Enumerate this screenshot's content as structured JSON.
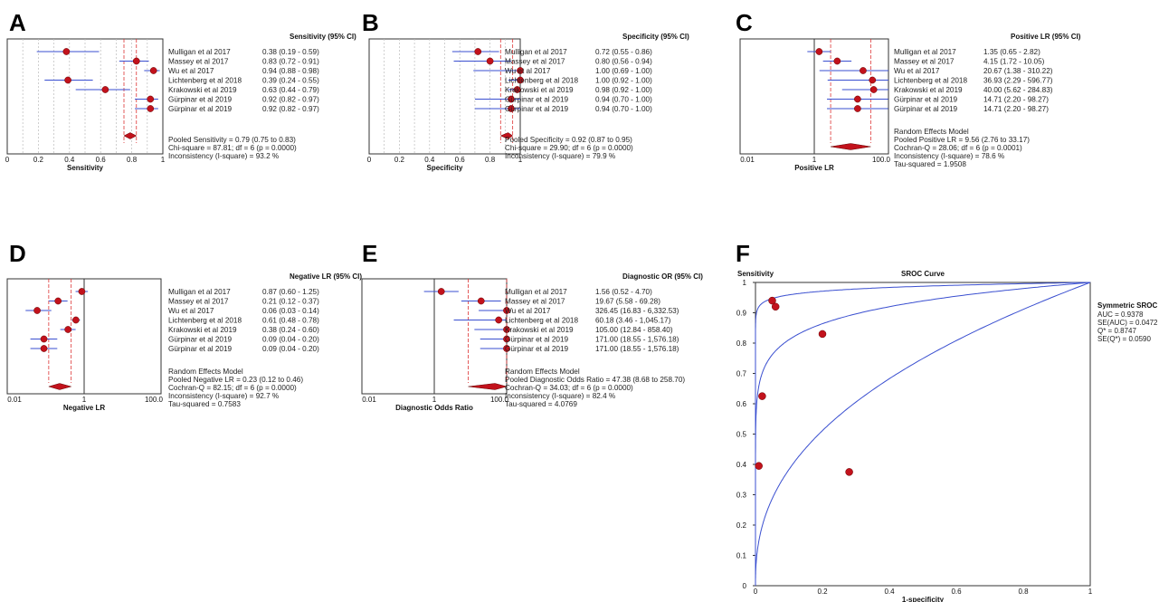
{
  "panels": [
    {
      "letter": "A",
      "header": "Sensitivity (95% CI)",
      "xlabel": "Sensitivity",
      "scale": "linear",
      "xlim": [
        0,
        1
      ],
      "ticks": [
        "0",
        "0.2",
        "0.4",
        "0.6",
        "0.8",
        "1"
      ],
      "refline": null,
      "pooled": {
        "est": 0.79,
        "lo": 0.75,
        "hi": 0.83
      },
      "rows": [
        {
          "study": "Mulligan et al 2017",
          "est": 0.38,
          "lo": 0.19,
          "hi": 0.59,
          "ci": "0.38     (0.19 - 0.59)"
        },
        {
          "study": "Massey et al 2017",
          "est": 0.83,
          "lo": 0.72,
          "hi": 0.91,
          "ci": "0.83     (0.72 - 0.91)"
        },
        {
          "study": "Wu et al 2017",
          "est": 0.94,
          "lo": 0.88,
          "hi": 0.98,
          "ci": "0.94     (0.88 - 0.98)"
        },
        {
          "study": "Lichtenberg et al 2018",
          "est": 0.39,
          "lo": 0.24,
          "hi": 0.55,
          "ci": "0.39     (0.24 - 0.55)"
        },
        {
          "study": "Krakowski et al 2019",
          "est": 0.63,
          "lo": 0.44,
          "hi": 0.79,
          "ci": "0.63     (0.44 - 0.79)"
        },
        {
          "study": "Gürpinar et al 2019",
          "est": 0.92,
          "lo": 0.82,
          "hi": 0.97,
          "ci": "0.92     (0.82 - 0.97)"
        },
        {
          "study": "Gürpinar et al 2019",
          "est": 0.92,
          "lo": 0.82,
          "hi": 0.97,
          "ci": "0.92     (0.82 - 0.97)"
        }
      ],
      "stats": [
        "Pooled Sensitivity = 0.79 (0.75 to 0.83)",
        "Chi-square = 87.81; df = 6 (p = 0.0000)",
        "Inconsistency (I-square) = 93.2 %"
      ]
    },
    {
      "letter": "B",
      "header": "Specificity (95% CI)",
      "xlabel": "Specificity",
      "scale": "linear",
      "xlim": [
        0,
        1
      ],
      "ticks": [
        "0",
        "0.2",
        "0.4",
        "0.6",
        "0.8",
        "1"
      ],
      "refline": null,
      "pooled": {
        "est": 0.92,
        "lo": 0.87,
        "hi": 0.95
      },
      "rows": [
        {
          "study": "Mulligan et al 2017",
          "est": 0.72,
          "lo": 0.55,
          "hi": 0.86,
          "ci": "0.72     (0.55 - 0.86)"
        },
        {
          "study": "Massey et al 2017",
          "est": 0.8,
          "lo": 0.56,
          "hi": 0.94,
          "ci": "0.80     (0.56 - 0.94)"
        },
        {
          "study": "Wu et al 2017",
          "est": 1.0,
          "lo": 0.69,
          "hi": 1.0,
          "ci": "1.00     (0.69 - 1.00)"
        },
        {
          "study": "Lichtenberg et al 2018",
          "est": 1.0,
          "lo": 0.92,
          "hi": 1.0,
          "ci": "1.00     (0.92 - 1.00)"
        },
        {
          "study": "Krakowski et al 2019",
          "est": 0.98,
          "lo": 0.92,
          "hi": 1.0,
          "ci": "0.98     (0.92 - 1.00)"
        },
        {
          "study": "Gürpinar et al 2019",
          "est": 0.94,
          "lo": 0.7,
          "hi": 1.0,
          "ci": "0.94     (0.70 - 1.00)"
        },
        {
          "study": "Gürpinar et al 2019",
          "est": 0.94,
          "lo": 0.7,
          "hi": 1.0,
          "ci": "0.94     (0.70 - 1.00)"
        }
      ],
      "stats": [
        "Pooled Specificity = 0.92 (0.87 to 0.95)",
        "Chi-square = 29.90; df = 6 (p = 0.0000)",
        "Inconsistency (I-square) = 79.9 %"
      ]
    },
    {
      "letter": "C",
      "header": "Positive LR (95% CI)",
      "xlabel": "Positive LR",
      "scale": "log",
      "xlim": [
        0.01,
        100
      ],
      "ticks": [
        "0.01",
        "1",
        "100.0"
      ],
      "refline": 1,
      "pooled": {
        "est": 9.56,
        "lo": 2.76,
        "hi": 33.17
      },
      "rows": [
        {
          "study": "Mulligan et al 2017",
          "est": 1.35,
          "lo": 0.65,
          "hi": 2.82,
          "ci": "1.35     (0.65 - 2.82)"
        },
        {
          "study": "Massey et al 2017",
          "est": 4.15,
          "lo": 1.72,
          "hi": 10.05,
          "ci": "4.15     (1.72 - 10.05)"
        },
        {
          "study": "Wu et al 2017",
          "est": 20.67,
          "lo": 1.38,
          "hi": 310.22,
          "ci": "20.67   (1.38 - 310.22)"
        },
        {
          "study": "Lichtenberg et al 2018",
          "est": 36.93,
          "lo": 2.29,
          "hi": 596.77,
          "ci": "36.93   (2.29 - 596.77)"
        },
        {
          "study": "Krakowski et al 2019",
          "est": 40.0,
          "lo": 5.62,
          "hi": 284.83,
          "ci": "40.00   (5.62 - 284.83)"
        },
        {
          "study": "Gürpinar et al 2019",
          "est": 14.71,
          "lo": 2.2,
          "hi": 98.27,
          "ci": "14.71   (2.20 - 98.27)"
        },
        {
          "study": "Gürpinar et al 2019",
          "est": 14.71,
          "lo": 2.2,
          "hi": 98.27,
          "ci": "14.71   (2.20 - 98.27)"
        }
      ],
      "stats": [
        "Random Effects Model",
        "Pooled Positive LR = 9.56 (2.76 to 33.17)",
        "Cochran-Q = 28.06; df = 6 (p = 0.0001)",
        "Inconsistency (I-square) = 78.6 %",
        "Tau-squared = 1.9508"
      ]
    },
    {
      "letter": "D",
      "header": "Negative LR (95% CI)",
      "xlabel": "Negative LR",
      "scale": "log",
      "xlim": [
        0.01,
        100
      ],
      "ticks": [
        "0.01",
        "1",
        "100.0"
      ],
      "refline": 1,
      "pooled": {
        "est": 0.23,
        "lo": 0.12,
        "hi": 0.46
      },
      "rows": [
        {
          "study": "Mulligan et al 2017",
          "est": 0.87,
          "lo": 0.6,
          "hi": 1.25,
          "ci": "0.87     (0.60 - 1.25)"
        },
        {
          "study": "Massey et al 2017",
          "est": 0.21,
          "lo": 0.12,
          "hi": 0.37,
          "ci": "0.21     (0.12 - 0.37)"
        },
        {
          "study": "Wu et al 2017",
          "est": 0.06,
          "lo": 0.03,
          "hi": 0.14,
          "ci": "0.06     (0.03 - 0.14)"
        },
        {
          "study": "Lichtenberg et al 2018",
          "est": 0.61,
          "lo": 0.48,
          "hi": 0.78,
          "ci": "0.61     (0.48 - 0.78)"
        },
        {
          "study": "Krakowski et al 2019",
          "est": 0.38,
          "lo": 0.24,
          "hi": 0.6,
          "ci": "0.38     (0.24 - 0.60)"
        },
        {
          "study": "Gürpinar et al 2019",
          "est": 0.09,
          "lo": 0.04,
          "hi": 0.2,
          "ci": "0.09     (0.04 - 0.20)"
        },
        {
          "study": "Gürpinar et al 2019",
          "est": 0.09,
          "lo": 0.04,
          "hi": 0.2,
          "ci": "0.09     (0.04 - 0.20)"
        }
      ],
      "stats": [
        "Random Effects Model",
        "Pooled Negative LR = 0.23 (0.12 to 0.46)",
        "Cochran-Q = 82.15; df = 6 (p = 0.0000)",
        "Inconsistency (I-square) = 92.7 %",
        "Tau-squared = 0.7583"
      ]
    },
    {
      "letter": "E",
      "header": "Diagnostic OR (95% CI)",
      "xlabel": "Diagnostic Odds Ratio",
      "scale": "log",
      "xlim": [
        0.01,
        100
      ],
      "ticks": [
        "0.01",
        "1",
        "100.0"
      ],
      "refline": 1,
      "pooled": {
        "est": 47.38,
        "lo": 8.68,
        "hi": 258.7
      },
      "rows": [
        {
          "study": "Mulligan et al 2017",
          "est": 1.56,
          "lo": 0.52,
          "hi": 4.7,
          "ci": "1.56     (0.52 - 4.70)"
        },
        {
          "study": "Massey et al 2017",
          "est": 19.67,
          "lo": 5.58,
          "hi": 69.28,
          "ci": "19.67   (5.58 - 69.28)"
        },
        {
          "study": "Wu et al 2017",
          "est": 326.45,
          "lo": 16.83,
          "hi": 6332.53,
          "ci": "326.45  (16.83 - 6,332.53)"
        },
        {
          "study": "Lichtenberg et al 2018",
          "est": 60.18,
          "lo": 3.46,
          "hi": 1045.17,
          "ci": "60.18   (3.46 - 1,045.17)"
        },
        {
          "study": "Krakowski et al 2019",
          "est": 105.0,
          "lo": 12.84,
          "hi": 858.4,
          "ci": "105.00  (12.84 - 858.40)"
        },
        {
          "study": "Gürpinar et al 2019",
          "est": 171.0,
          "lo": 18.55,
          "hi": 1576.18,
          "ci": "171.00  (18.55 - 1,576.18)"
        },
        {
          "study": "Gürpinar et al 2019",
          "est": 171.0,
          "lo": 18.55,
          "hi": 1576.18,
          "ci": "171.00  (18.55 - 1,576.18)"
        }
      ],
      "stats": [
        "Random Effects Model",
        "Pooled Diagnostic Odds Ratio = 47.38 (8.68 to 258.70)",
        "Cochran-Q = 34.03; df = 6 (p = 0.0000)",
        "Inconsistency (I-square) = 82.4 %",
        "Tau-squared = 4.0769"
      ]
    }
  ],
  "sroc": {
    "letter": "F",
    "title": "SROC Curve",
    "ylabel": "Sensitivity",
    "xlabel": "1-specificity",
    "xticks": [
      "0",
      "0.2",
      "0.4",
      "0.6",
      "0.8",
      "1"
    ],
    "yticks": [
      "0",
      "0.1",
      "0.2",
      "0.3",
      "0.4",
      "0.5",
      "0.6",
      "0.7",
      "0.8",
      "0.9",
      "1"
    ],
    "legend_title": "Symmetric SROC",
    "legend_lines": [
      "AUC = 0.9378",
      "SE(AUC) = 0.0472",
      "Q* = 0.8747",
      "SE(Q*) = 0.0590"
    ]
  },
  "chart_data": [
    {
      "type": "scatter",
      "title": "",
      "xlabel": "Sensitivity",
      "header": "Sensitivity (95% CI)",
      "studies": [
        "Mulligan et al 2017",
        "Massey et al 2017",
        "Wu et al 2017",
        "Lichtenberg et al 2018",
        "Krakowski et al 2019",
        "Gürpinar et al 2019",
        "Gürpinar et al 2019"
      ],
      "estimates": [
        0.38,
        0.83,
        0.94,
        0.39,
        0.63,
        0.92,
        0.92
      ],
      "xlim": [
        0,
        1
      ]
    },
    {
      "type": "scatter",
      "title": "",
      "xlabel": "Specificity",
      "header": "Specificity (95% CI)",
      "estimates": [
        0.72,
        0.8,
        1.0,
        1.0,
        0.98,
        0.94,
        0.94
      ],
      "xlim": [
        0,
        1
      ]
    },
    {
      "type": "scatter",
      "title": "",
      "xlabel": "Positive LR",
      "header": "Positive LR (95% CI)",
      "estimates": [
        1.35,
        4.15,
        20.67,
        36.93,
        40.0,
        14.71,
        14.71
      ],
      "xlim": [
        0.01,
        100
      ],
      "log": true
    },
    {
      "type": "scatter",
      "title": "",
      "xlabel": "Negative LR",
      "header": "Negative LR (95% CI)",
      "estimates": [
        0.87,
        0.21,
        0.06,
        0.61,
        0.38,
        0.09,
        0.09
      ],
      "xlim": [
        0.01,
        100
      ],
      "log": true
    },
    {
      "type": "scatter",
      "title": "",
      "xlabel": "Diagnostic Odds Ratio",
      "header": "Diagnostic OR (95% CI)",
      "estimates": [
        1.56,
        19.67,
        326.45,
        60.18,
        105.0,
        171.0,
        171.0
      ],
      "xlim": [
        0.01,
        100
      ],
      "log": true
    },
    {
      "type": "scatter",
      "title": "SROC Curve",
      "xlabel": "1-specificity",
      "ylabel": "Sensitivity",
      "xlim": [
        0,
        1
      ],
      "ylim": [
        0,
        1
      ],
      "series": [
        {
          "x": [
            0.05,
            0.06,
            0.2,
            0.02,
            0.01,
            0.28
          ],
          "y": [
            0.94,
            0.92,
            0.83,
            0.625,
            0.395,
            0.375
          ]
        }
      ],
      "auc": 0.9378,
      "se_auc": 0.0472,
      "q_star": 0.8747,
      "se_q_star": 0.059
    }
  ]
}
